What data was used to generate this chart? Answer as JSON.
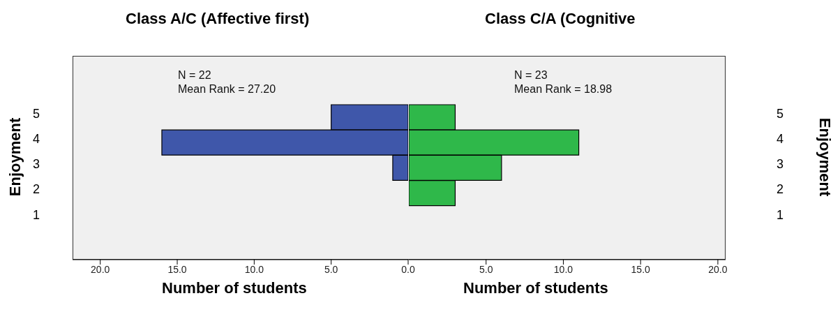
{
  "chart_data": [
    {
      "type": "bar",
      "orientation": "horizontal",
      "title": "Class A/C (Affective first)",
      "xlabel": "Number of students",
      "ylabel": "Enjoyment",
      "categories": [
        "5",
        "4",
        "3",
        "2",
        "1"
      ],
      "values": [
        5,
        16,
        1,
        0,
        0
      ],
      "color": "#3f57aa",
      "xlim": [
        21.8,
        0
      ],
      "xticks": [
        {
          "value": 20,
          "label": "20.0"
        },
        {
          "value": 15,
          "label": "15.0"
        },
        {
          "value": 10,
          "label": "10.0"
        },
        {
          "value": 5,
          "label": "5.0"
        },
        {
          "value": 0,
          "label": "0.0"
        }
      ],
      "annotations": [
        "N = 22",
        "Mean Rank = 27.20"
      ]
    },
    {
      "type": "bar",
      "orientation": "horizontal",
      "title": "Class C/A (Cognitive",
      "xlabel": "Number of students",
      "ylabel": "Enjoyment",
      "categories": [
        "5",
        "4",
        "3",
        "2",
        "1"
      ],
      "values": [
        3,
        11,
        6,
        3,
        0
      ],
      "color": "#2fb84a",
      "xlim": [
        0,
        20.5
      ],
      "xticks": [
        {
          "value": 5,
          "label": "5.0"
        },
        {
          "value": 10,
          "label": "10.0"
        },
        {
          "value": 15,
          "label": "15.0"
        },
        {
          "value": 20,
          "label": "20.0"
        }
      ],
      "annotations": [
        "N = 23",
        "Mean Rank = 18.98"
      ]
    }
  ]
}
